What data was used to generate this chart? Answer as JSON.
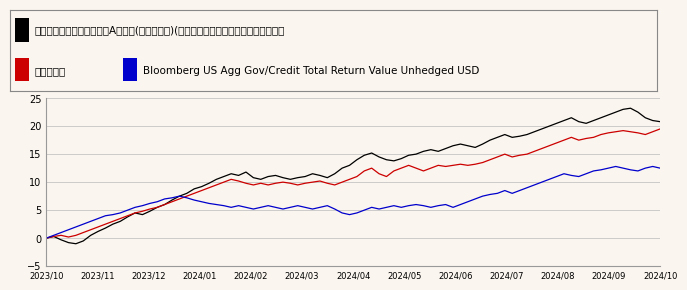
{
  "legend_labels": [
    "鋒裕匯理基金新興市場債券A南非幣(穩定月配息)(本基金主要係投資於非投資等級之高風",
    "同類型平均",
    "Bloomberg US Agg Gov/Credit Total Return Value Unhedged USD"
  ],
  "legend_colors": [
    "#000000",
    "#cc0000",
    "#0000cc"
  ],
  "x_labels": [
    "2023/10",
    "2023/11",
    "2023/12",
    "2024/01",
    "2024/02",
    "2024/03",
    "2024/04",
    "2024/05",
    "2024/06",
    "2024/07",
    "2024/08",
    "2024/09",
    "2024/10"
  ],
  "ylim": [
    -5,
    25
  ],
  "yticks": [
    -5,
    0,
    5,
    10,
    15,
    20,
    25
  ],
  "background_color": "#faf5ee",
  "plot_bg_color": "#faf5ee",
  "grid_color": "#bbbbbb",
  "fund_color": "#000000",
  "peer_color": "#cc0000",
  "index_color": "#0000cc",
  "fund_data": [
    0.0,
    0.3,
    -0.3,
    -0.8,
    -1.0,
    -0.5,
    0.5,
    1.2,
    1.8,
    2.5,
    3.0,
    3.8,
    4.5,
    4.2,
    4.8,
    5.5,
    6.0,
    6.8,
    7.5,
    8.0,
    8.8,
    9.2,
    9.8,
    10.5,
    11.0,
    11.5,
    11.2,
    11.8,
    10.8,
    10.5,
    11.0,
    11.2,
    10.8,
    10.5,
    10.8,
    11.0,
    11.5,
    11.2,
    10.8,
    11.5,
    12.5,
    13.0,
    14.0,
    14.8,
    15.2,
    14.5,
    14.0,
    13.8,
    14.2,
    14.8,
    15.0,
    15.5,
    15.8,
    15.5,
    16.0,
    16.5,
    16.8,
    16.5,
    16.2,
    16.8,
    17.5,
    18.0,
    18.5,
    18.0,
    18.2,
    18.5,
    19.0,
    19.5,
    20.0,
    20.5,
    21.0,
    21.5,
    20.8,
    20.5,
    21.0,
    21.5,
    22.0,
    22.5,
    23.0,
    23.2,
    22.5,
    21.5,
    21.0,
    20.8
  ],
  "peer_data": [
    0.0,
    0.3,
    0.5,
    0.2,
    0.5,
    1.0,
    1.5,
    2.0,
    2.5,
    3.0,
    3.5,
    4.0,
    4.5,
    4.8,
    5.2,
    5.5,
    6.0,
    6.5,
    7.0,
    7.5,
    8.0,
    8.5,
    9.0,
    9.5,
    10.0,
    10.5,
    10.2,
    9.8,
    9.5,
    9.8,
    9.5,
    9.8,
    10.0,
    9.8,
    9.5,
    9.8,
    10.0,
    10.2,
    9.8,
    9.5,
    10.0,
    10.5,
    11.0,
    12.0,
    12.5,
    11.5,
    11.0,
    12.0,
    12.5,
    13.0,
    12.5,
    12.0,
    12.5,
    13.0,
    12.8,
    13.0,
    13.2,
    13.0,
    13.2,
    13.5,
    14.0,
    14.5,
    15.0,
    14.5,
    14.8,
    15.0,
    15.5,
    16.0,
    16.5,
    17.0,
    17.5,
    18.0,
    17.5,
    17.8,
    18.0,
    18.5,
    18.8,
    19.0,
    19.2,
    19.0,
    18.8,
    18.5,
    19.0,
    19.5
  ],
  "index_data": [
    0.0,
    0.5,
    1.0,
    1.5,
    2.0,
    2.5,
    3.0,
    3.5,
    4.0,
    4.2,
    4.5,
    5.0,
    5.5,
    5.8,
    6.2,
    6.5,
    7.0,
    7.2,
    7.5,
    7.2,
    6.8,
    6.5,
    6.2,
    6.0,
    5.8,
    5.5,
    5.8,
    5.5,
    5.2,
    5.5,
    5.8,
    5.5,
    5.2,
    5.5,
    5.8,
    5.5,
    5.2,
    5.5,
    5.8,
    5.2,
    4.5,
    4.2,
    4.5,
    5.0,
    5.5,
    5.2,
    5.5,
    5.8,
    5.5,
    5.8,
    6.0,
    5.8,
    5.5,
    5.8,
    6.0,
    5.5,
    6.0,
    6.5,
    7.0,
    7.5,
    7.8,
    8.0,
    8.5,
    8.0,
    8.5,
    9.0,
    9.5,
    10.0,
    10.5,
    11.0,
    11.5,
    11.2,
    11.0,
    11.5,
    12.0,
    12.2,
    12.5,
    12.8,
    12.5,
    12.2,
    12.0,
    12.5,
    12.8,
    12.5
  ]
}
